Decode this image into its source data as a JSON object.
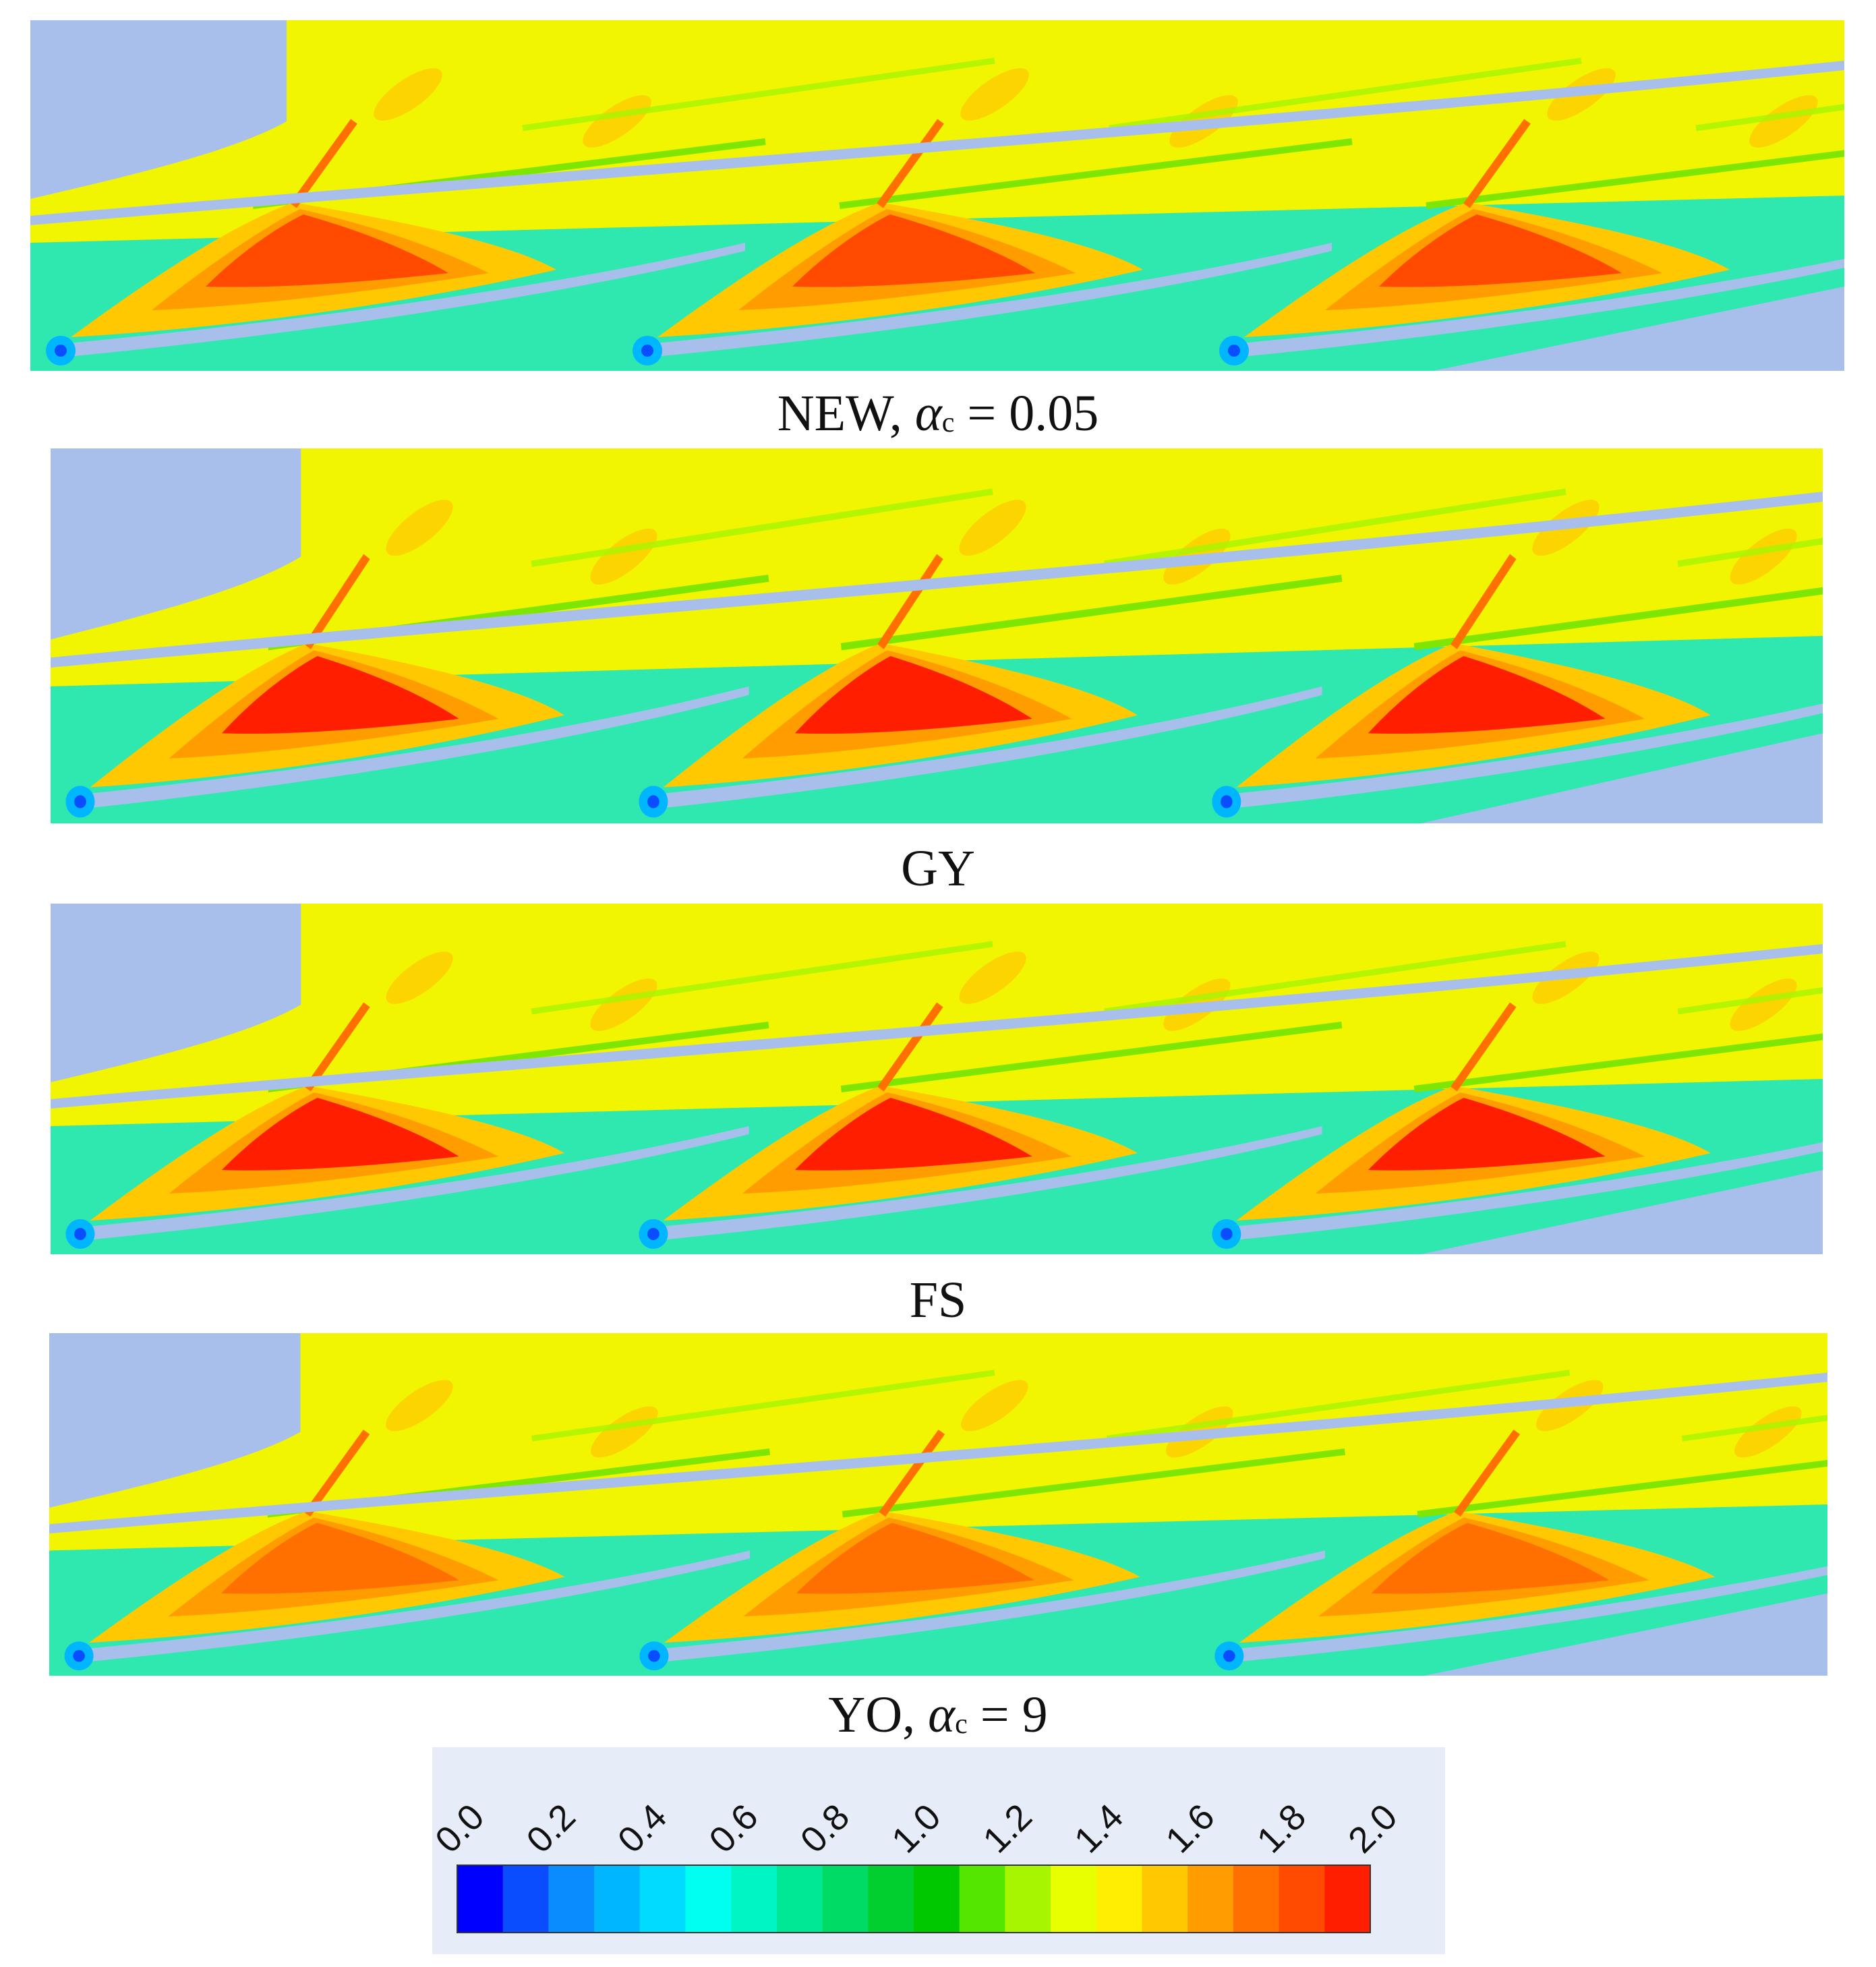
{
  "panels": [
    {
      "label": "NEW",
      "param_symbol": "α",
      "param_sub": "c",
      "param_value": "0.05",
      "blank": "#a9bfeb"
    },
    {
      "label": "GY",
      "param_symbol": "",
      "param_sub": "",
      "param_value": "",
      "blank": "#a9bfeb"
    },
    {
      "label": "FS",
      "param_symbol": "",
      "param_sub": "",
      "param_value": "",
      "blank": "#a9bfeb"
    },
    {
      "label": "YO",
      "param_symbol": "α",
      "param_sub": "c",
      "param_value": "9",
      "blank": "#a9bfeb"
    }
  ],
  "chart_data": {
    "type": "heatmap",
    "colorbar": {
      "ticks": [
        "0.0",
        "0.2",
        "0.4",
        "0.6",
        "0.8",
        "1.0",
        "1.2",
        "1.4",
        "1.6",
        "1.8",
        "2.0"
      ],
      "range": [
        0.0,
        2.0
      ],
      "levels": 20,
      "colors": [
        "#0000ff",
        "#0a4dff",
        "#0a8cff",
        "#00b7ff",
        "#00dcff",
        "#00fff0",
        "#00f5c4",
        "#00e896",
        "#00db63",
        "#00cf2f",
        "#00c800",
        "#55e600",
        "#a8f500",
        "#e8ff00",
        "#ffee00",
        "#ffc800",
        "#ff9d00",
        "#ff7000",
        "#ff4a00",
        "#ff1f00"
      ]
    }
  }
}
